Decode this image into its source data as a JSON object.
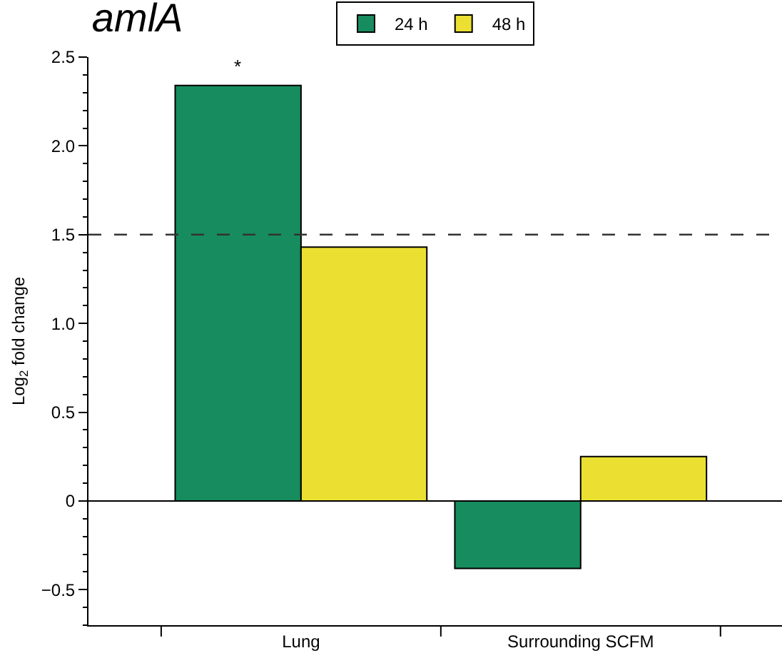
{
  "chart_data": {
    "type": "bar",
    "title": "amlA",
    "ylabel": "Log$_{2}$ fold change",
    "categories": [
      "Lung",
      "Surrounding SCFM"
    ],
    "series": [
      {
        "name": "24 h",
        "color": "#178c5e",
        "values": [
          2.34,
          -0.38
        ]
      },
      {
        "name": "48 h",
        "color": "#ebe032",
        "values": [
          1.43,
          0.25
        ]
      }
    ],
    "ylim": [
      -0.7,
      2.5
    ],
    "yticks": [
      {
        "value": -0.5,
        "label": "−0.5"
      },
      0,
      0.5,
      {
        "value": 1,
        "label": "1.0"
      },
      1.5,
      {
        "value": 2,
        "label": "2.0"
      },
      2.5
    ],
    "ref_lines": [
      {
        "axis": "y",
        "value": 1.5,
        "line_style": "dashed"
      }
    ],
    "annotations": [
      "*"
    ],
    "legend": "top",
    "grid": false
  }
}
